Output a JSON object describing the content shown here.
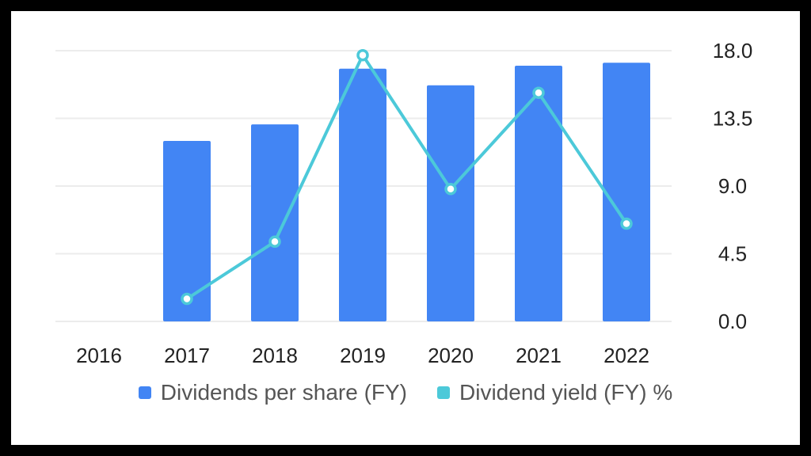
{
  "chart_data": {
    "type": "bar",
    "categories": [
      "2016",
      "2017",
      "2018",
      "2019",
      "2020",
      "2021",
      "2022"
    ],
    "series": [
      {
        "name": "Dividends per share (FY)",
        "kind": "bar",
        "color": "#4285f4",
        "values": [
          null,
          12.0,
          13.1,
          16.8,
          15.7,
          17.0,
          17.2
        ]
      },
      {
        "name": "Dividend yield (FY) %",
        "kind": "line",
        "color": "#4cc9d9",
        "values": [
          null,
          1.5,
          5.3,
          17.7,
          8.8,
          15.2,
          6.5
        ]
      }
    ],
    "yticks": [
      "0.0",
      "4.5",
      "9.0",
      "13.5",
      "18.0"
    ],
    "ylim": [
      0,
      18
    ],
    "yaxis_position": "right",
    "grid": true,
    "legend_position": "bottom"
  }
}
